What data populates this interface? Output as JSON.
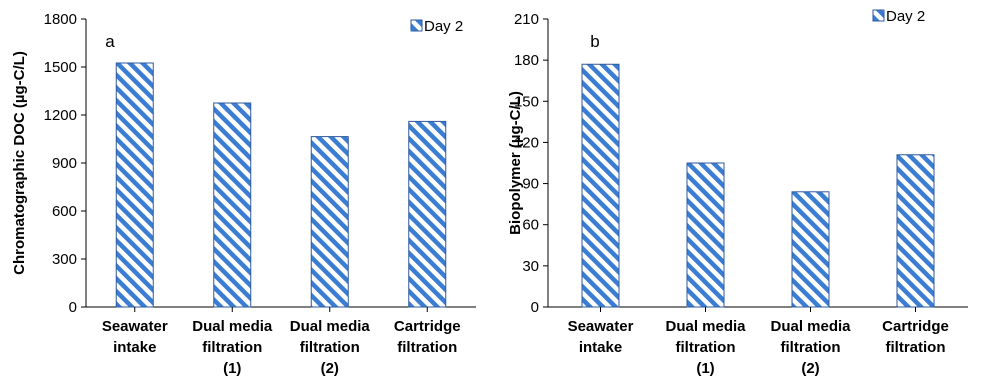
{
  "chart_data": [
    {
      "type": "bar",
      "panel_label": "a",
      "categories": [
        [
          "Seawater",
          "intake"
        ],
        [
          "Dual media",
          "filtration",
          "(1)"
        ],
        [
          "Dual media",
          "filtration",
          "(2)"
        ],
        [
          "Cartridge",
          "filtration"
        ]
      ],
      "series": [
        {
          "name": "Day 2",
          "values": [
            1525,
            1275,
            1065,
            1160
          ]
        }
      ],
      "ylabel": "Chromatographic DOC (µg-C/L)",
      "ylim": [
        0,
        1800
      ],
      "yticks": [
        0,
        300,
        600,
        900,
        1200,
        1500,
        1800
      ],
      "grid": false,
      "legend": "top-right",
      "bar_fill": "hatched-diagonal",
      "color": "#3c7dd4"
    },
    {
      "type": "bar",
      "panel_label": "b",
      "categories": [
        [
          "Seawater",
          "intake"
        ],
        [
          "Dual media",
          "filtration",
          "(1)"
        ],
        [
          "Dual media",
          "filtration",
          "(2)"
        ],
        [
          "Cartridge",
          "filtration"
        ]
      ],
      "series": [
        {
          "name": "Day 2",
          "values": [
            177,
            105,
            84,
            111
          ]
        }
      ],
      "ylabel": "Biopolymer (µg-C/L)",
      "ylim": [
        0,
        210
      ],
      "yticks": [
        0,
        30,
        60,
        90,
        120,
        150,
        180,
        210
      ],
      "grid": false,
      "legend": "top-right",
      "bar_fill": "hatched-diagonal",
      "color": "#3c7dd4"
    }
  ]
}
